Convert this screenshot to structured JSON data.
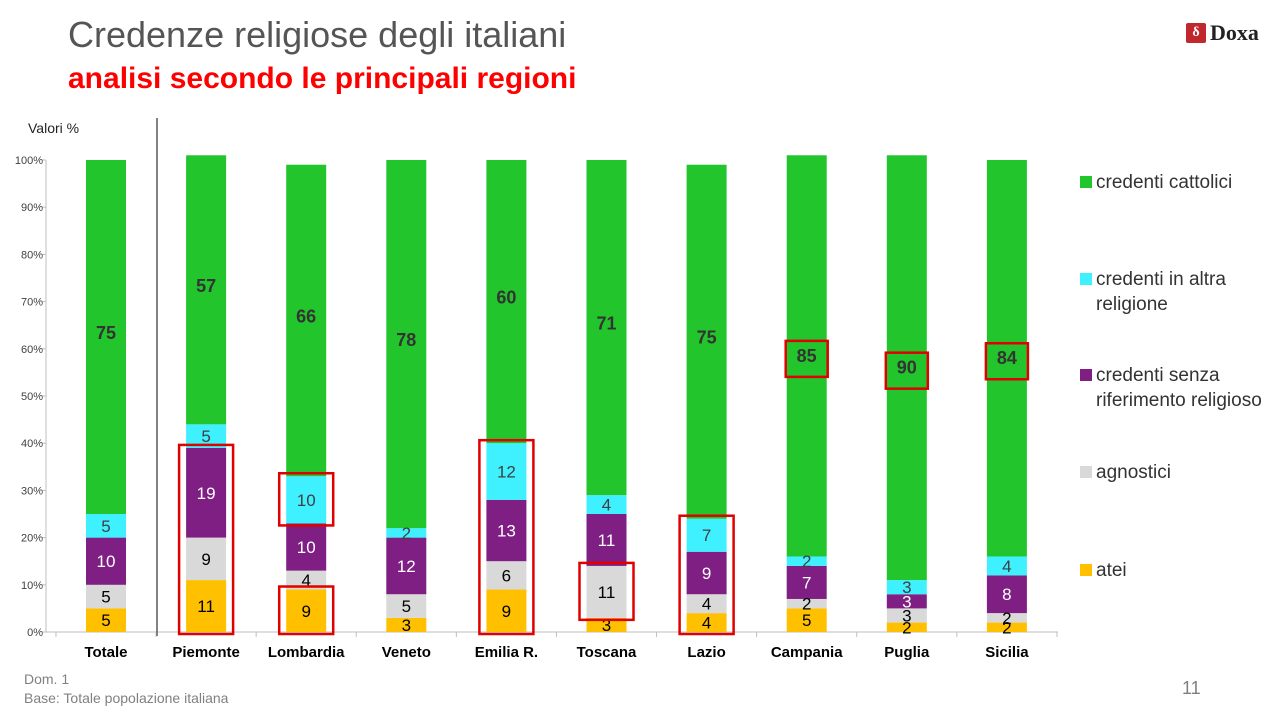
{
  "header": {
    "title": "Credenze religiose degli italiani",
    "subtitle": "analisi secondo le principali regioni",
    "logo_text": "Doxa"
  },
  "footer": {
    "question": "Dom. 1",
    "base": "Base: Totale popolazione italiana",
    "page_number": "11"
  },
  "colors": {
    "atei": "#ffc000",
    "agnostici": "#d9d9d9",
    "senza_riferimento": "#7f1f83",
    "altra_religione": "#3ff0ff",
    "cattolici": "#22c52b",
    "highlight": "#e00000"
  },
  "chart_data": {
    "type": "bar",
    "stacked": true,
    "unit_label": "Valori %",
    "categories": [
      "Totale",
      "Piemonte",
      "Lombardia",
      "Veneto",
      "Emilia R.",
      "Toscana",
      "Lazio",
      "Campania",
      "Puglia",
      "Sicilia"
    ],
    "y_ticks": [
      "0%",
      "10%",
      "20%",
      "30%",
      "40%",
      "50%",
      "60%",
      "70%",
      "80%",
      "90%",
      "100%"
    ],
    "ylim": [
      0,
      100
    ],
    "grid": false,
    "legend_position": "right",
    "series": [
      {
        "name": "atei",
        "values": [
          5,
          11,
          9,
          3,
          9,
          3,
          4,
          5,
          2,
          2
        ]
      },
      {
        "name": "agnostici",
        "values": [
          5,
          9,
          4,
          5,
          6,
          11,
          4,
          2,
          3,
          2
        ]
      },
      {
        "name": "credenti senza riferimento religioso",
        "values": [
          10,
          19,
          10,
          12,
          13,
          11,
          9,
          7,
          3,
          8
        ]
      },
      {
        "name": "credenti in altra religione",
        "values": [
          5,
          5,
          10,
          2,
          12,
          4,
          7,
          2,
          3,
          4
        ]
      },
      {
        "name": "credenti cattolici",
        "values": [
          75,
          57,
          66,
          78,
          60,
          71,
          75,
          85,
          90,
          84
        ]
      }
    ],
    "legend_order": [
      "credenti cattolici",
      "credenti in altra religione",
      "credenti senza riferimento religioso",
      "agnostici",
      "atei"
    ],
    "highlights": [
      {
        "category": "Piemonte",
        "series": [
          "atei",
          "agnostici",
          "credenti senza riferimento religioso"
        ]
      },
      {
        "category": "Lombardia",
        "series": [
          "atei"
        ]
      },
      {
        "category": "Lombardia",
        "series": [
          "credenti in altra religione"
        ]
      },
      {
        "category": "Emilia R.",
        "series": [
          "atei",
          "agnostici",
          "credenti senza riferimento religioso",
          "credenti in altra religione"
        ]
      },
      {
        "category": "Toscana",
        "series": [
          "agnostici"
        ]
      },
      {
        "category": "Lazio",
        "series": [
          "atei",
          "agnostici",
          "credenti senza riferimento religioso",
          "credenti in altra religione"
        ]
      },
      {
        "category": "Campania",
        "series": [
          "credenti cattolici"
        ],
        "label_only": true
      },
      {
        "category": "Puglia",
        "series": [
          "credenti cattolici"
        ],
        "label_only": true
      },
      {
        "category": "Sicilia",
        "series": [
          "credenti cattolici"
        ],
        "label_only": true
      }
    ]
  }
}
